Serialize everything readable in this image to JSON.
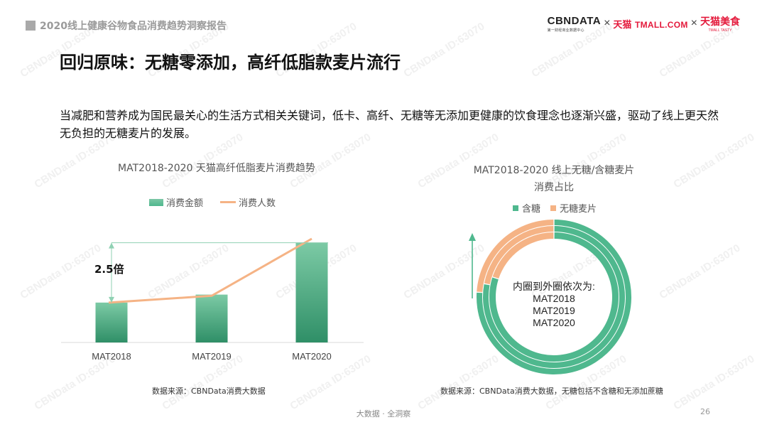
{
  "header": {
    "report_title": "2020线上健康谷物食品消费趋势洞察报告",
    "logos": {
      "cbn_main": "CBNDATA",
      "cbn_sub": "第一财经商业数据中心",
      "separator": "×",
      "tmall_cn": "天猫",
      "tmall_en": "TMALL.COM",
      "tmall_tasty_cn": "天猫美食",
      "tmall_tasty_en": "TMALL TASTY"
    }
  },
  "headline": "回归原味：无糖零添加，高纤低脂款麦片流行",
  "description": "当减肥和营养成为国民最关心的生活方式相关关键词，低卡、高纤、无糖等无添加更健康的饮食理念也逐渐兴盛，驱动了线上更天然无负担的无糖麦片的发展。",
  "watermark_text": "CBNData ID:63070",
  "colors": {
    "green": "#4fb88e",
    "green_dark": "#2f8f67",
    "orange": "#f5b385",
    "brand_red": "#e4193b",
    "gray": "#a9a9a9"
  },
  "chart_data": [
    {
      "type": "bar",
      "title": "MAT2018-2020 天猫高纤低脂麦片消费趋势",
      "categories": [
        "MAT2018",
        "MAT2019",
        "MAT2020"
      ],
      "series": [
        {
          "name": "消费金额",
          "kind": "bar",
          "values": [
            1.0,
            1.2,
            2.5
          ]
        },
        {
          "name": "消费人数",
          "kind": "line",
          "values": [
            1.0,
            1.17,
            2.6
          ]
        }
      ],
      "annotation": "2.5倍",
      "ylim": [
        0,
        2.6
      ],
      "legend": "top",
      "grid": false,
      "source": "数据来源：CBNData消费大数据"
    },
    {
      "type": "pie",
      "variant": "nested-donut",
      "title_line1": "MAT2018-2020 线上无糖/含糖麦片",
      "title_line2": "消费占比",
      "legend_entries": [
        "含糖",
        "无糖麦片"
      ],
      "rings": [
        {
          "name": "MAT2018",
          "values": {
            "含糖": 0.8,
            "无糖麦片": 0.2
          }
        },
        {
          "name": "MAT2019",
          "values": {
            "含糖": 0.78,
            "无糖麦片": 0.22
          }
        },
        {
          "name": "MAT2020",
          "values": {
            "含糖": 0.76,
            "无糖麦片": 0.24
          }
        }
      ],
      "center_label": {
        "line1": "内圈到外圈依次为:",
        "line2": "MAT2018",
        "line3": "MAT2019",
        "line4": "MAT2020"
      },
      "legend": "top",
      "source": "数据来源：CBNData消费大数据，无糖包括不含糖和无添加蔗糖"
    }
  ],
  "footer": {
    "center": "大数据 · 全洞察",
    "page": "26"
  }
}
